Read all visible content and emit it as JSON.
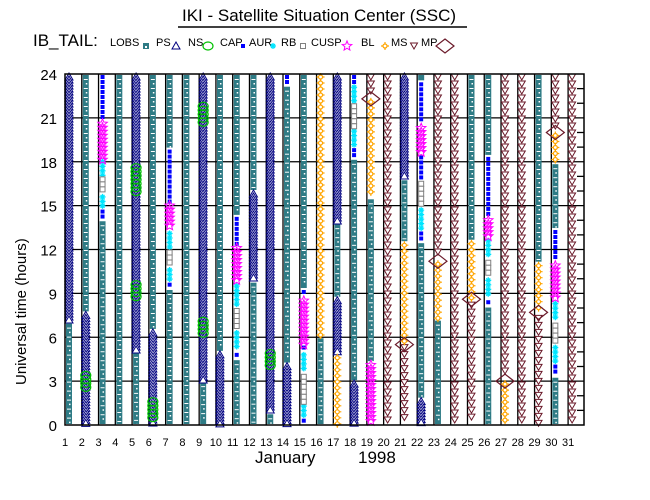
{
  "chart_data": {
    "type": "timeline",
    "title": "IKI - Satellite Situation Center (SSC)",
    "region_label": "IB_TAIL:",
    "xlabel_month": "January",
    "xlabel_year": "1998",
    "ylabel": "Universal time (hours)",
    "ylim": [
      0,
      24
    ],
    "yticks": [
      "0",
      "3",
      "6",
      "9",
      "12",
      "15",
      "18",
      "21",
      "24"
    ],
    "xticks": [
      "1",
      "2",
      "3",
      "4",
      "5",
      "6",
      "7",
      "8",
      "9",
      "10",
      "11",
      "12",
      "13",
      "14",
      "15",
      "16",
      "17",
      "18",
      "19",
      "20",
      "21",
      "22",
      "23",
      "24",
      "25",
      "26",
      "27",
      "28",
      "29",
      "30",
      "31"
    ],
    "legend": [
      {
        "key": "LOBS",
        "label": "LOBS",
        "color": "#2e7b85"
      },
      {
        "key": "PS",
        "label": "PS",
        "color": "#000080"
      },
      {
        "key": "NS",
        "label": "NS",
        "color": "#00c000"
      },
      {
        "key": "CAP",
        "label": "CAP",
        "color": "#0000ff"
      },
      {
        "key": "AUR",
        "label": "AUR",
        "color": "#00e5ff"
      },
      {
        "key": "RB",
        "label": "RB",
        "color": "#808080"
      },
      {
        "key": "CUSP",
        "label": "CUSP",
        "color": "#ff00ff"
      },
      {
        "key": "BL",
        "label": "BL",
        "color": "#ffa500"
      },
      {
        "key": "MS",
        "label": "MS",
        "color": "#6b1a2a"
      },
      {
        "key": "MP",
        "label": "MP",
        "color": "#6b1a2a"
      }
    ],
    "days": [
      {
        "day": 1,
        "segments": [
          [
            "LOBS",
            0,
            7
          ],
          [
            "PS",
            7,
            24
          ]
        ]
      },
      {
        "day": 2,
        "segments": [
          [
            "PS",
            0,
            7.7
          ],
          [
            "LOBS",
            7.7,
            24
          ],
          [
            "NS",
            2.4,
            3.6
          ]
        ]
      },
      {
        "day": 3,
        "segments": [
          [
            "LOBS",
            0,
            14
          ],
          [
            "CAP",
            14,
            14.8
          ],
          [
            "AUR",
            14.8,
            15.8
          ],
          [
            "RB",
            15.8,
            17
          ],
          [
            "AUR",
            17,
            18.2
          ],
          [
            "CUSP",
            17.9,
            20.8
          ],
          [
            "CAP",
            20.8,
            24
          ]
        ]
      },
      {
        "day": 4,
        "segments": [
          [
            "LOBS",
            0,
            24
          ]
        ]
      },
      {
        "day": 5,
        "segments": [
          [
            "LOBS",
            0,
            5
          ],
          [
            "PS",
            5,
            24
          ],
          [
            "NS",
            15.8,
            17.8
          ],
          [
            "NS",
            8.5,
            9.8
          ]
        ]
      },
      {
        "day": 6,
        "segments": [
          [
            "PS",
            0,
            6.5
          ],
          [
            "LOBS",
            6.5,
            24
          ],
          [
            "NS",
            0.2,
            1.8
          ]
        ]
      },
      {
        "day": 7,
        "segments": [
          [
            "LOBS",
            0,
            9.3
          ],
          [
            "CAP",
            9.3,
            9.8
          ],
          [
            "AUR",
            9.8,
            10.8
          ],
          [
            "RB",
            10.8,
            12
          ],
          [
            "AUR",
            12,
            13.3
          ],
          [
            "CUSP",
            13.3,
            15.2
          ],
          [
            "CAP",
            15.2,
            18.9
          ],
          [
            "LOBS",
            18.9,
            24
          ]
        ]
      },
      {
        "day": 8,
        "segments": [
          [
            "LOBS",
            0,
            24
          ]
        ]
      },
      {
        "day": 9,
        "segments": [
          [
            "LOBS",
            0,
            3
          ],
          [
            "PS",
            3,
            24
          ],
          [
            "NS",
            20.5,
            22
          ],
          [
            "NS",
            6.1,
            7.3
          ]
        ]
      },
      {
        "day": 10,
        "segments": [
          [
            "PS",
            0,
            5
          ],
          [
            "LOBS",
            5,
            24
          ]
        ]
      },
      {
        "day": 11,
        "segments": [
          [
            "LOBS",
            0,
            4.5
          ],
          [
            "CAP",
            4.5,
            5
          ],
          [
            "AUR",
            5,
            6.5
          ],
          [
            "RB",
            6.5,
            8
          ],
          [
            "AUR",
            8,
            9.7
          ],
          [
            "CUSP",
            9.7,
            12.3
          ],
          [
            "CAP",
            12.3,
            14.3
          ],
          [
            "LOBS",
            14.3,
            24
          ]
        ]
      },
      {
        "day": 12,
        "segments": [
          [
            "LOBS",
            0,
            9.8
          ],
          [
            "PS",
            9.8,
            16
          ],
          [
            "LOBS",
            16,
            24
          ]
        ]
      },
      {
        "day": 13,
        "segments": [
          [
            "LOBS",
            0,
            0.8
          ],
          [
            "PS",
            0.8,
            24
          ],
          [
            "NS",
            4,
            5.1
          ]
        ]
      },
      {
        "day": 14,
        "segments": [
          [
            "PS",
            0,
            4.2
          ],
          [
            "LOBS",
            4.2,
            23.2
          ],
          [
            "CAP",
            23.2,
            24
          ]
        ]
      },
      {
        "day": 15,
        "segments": [
          [
            "CAP",
            0,
            0.5
          ],
          [
            "AUR",
            0.5,
            1.5
          ],
          [
            "RB",
            1.5,
            3.5
          ],
          [
            "AUR",
            3.5,
            5
          ],
          [
            "CAP",
            5,
            5.5
          ],
          [
            "CUSP",
            5.3,
            8.7
          ],
          [
            "CAP",
            8.7,
            9.3
          ],
          [
            "LOBS",
            9.3,
            24
          ]
        ]
      },
      {
        "day": 16,
        "segments": [
          [
            "LOBS",
            0,
            6
          ],
          [
            "BL",
            6,
            24
          ]
        ]
      },
      {
        "day": 17,
        "segments": [
          [
            "BL",
            0,
            4.8
          ],
          [
            "PS",
            4.8,
            8.7
          ],
          [
            "LOBS",
            8.7,
            13.8
          ],
          [
            "PS",
            13.8,
            24
          ]
        ]
      },
      {
        "day": 18,
        "segments": [
          [
            "PS",
            0,
            3
          ],
          [
            "LOBS",
            3,
            18.2
          ],
          [
            "CAP",
            18.2,
            19
          ],
          [
            "AUR",
            19,
            20.3
          ],
          [
            "RB",
            20.3,
            22
          ],
          [
            "AUR",
            22,
            23.3
          ],
          [
            "CAP",
            23.3,
            24
          ]
        ]
      },
      {
        "day": 19,
        "segments": [
          [
            "CUSP",
            0,
            4.3
          ],
          [
            "LOBS",
            4.3,
            15.5
          ],
          [
            "BL",
            15.5,
            22.3
          ],
          [
            "MS",
            22.5,
            24
          ],
          [
            "MP",
            22.3,
            22.3
          ]
        ]
      },
      {
        "day": 20,
        "segments": [
          [
            "MS",
            0,
            24
          ]
        ]
      },
      {
        "day": 21,
        "segments": [
          [
            "MS",
            0,
            5.5
          ],
          [
            "MP",
            5.5,
            5.5
          ],
          [
            "BL",
            5.5,
            12.5
          ],
          [
            "LOBS",
            12.5,
            16.8
          ],
          [
            "PS",
            16.8,
            24
          ]
        ]
      },
      {
        "day": 22,
        "segments": [
          [
            "PS",
            0,
            1.8
          ],
          [
            "LOBS",
            1.8,
            12.5
          ],
          [
            "CAP",
            12.5,
            13.3
          ],
          [
            "AUR",
            13.3,
            14.9
          ],
          [
            "RB",
            14.9,
            16.7
          ],
          [
            "CAP",
            16.7,
            18.5
          ],
          [
            "CUSP",
            18.5,
            20.5
          ],
          [
            "CAP",
            20.5,
            23.5
          ],
          [
            "LOBS",
            23.5,
            24
          ]
        ]
      },
      {
        "day": 23,
        "segments": [
          [
            "LOBS",
            0,
            7.2
          ],
          [
            "BL",
            7.2,
            11.2
          ],
          [
            "MP",
            11.2,
            11.2
          ],
          [
            "MS",
            11.5,
            24
          ]
        ]
      },
      {
        "day": 24,
        "segments": [
          [
            "MS",
            0,
            24
          ]
        ]
      },
      {
        "day": 25,
        "segments": [
          [
            "MS",
            0,
            8.4
          ],
          [
            "MP",
            8.6,
            8.6
          ],
          [
            "BL",
            8.6,
            12.6
          ],
          [
            "LOBS",
            12.6,
            24
          ]
        ]
      },
      {
        "day": 26,
        "segments": [
          [
            "LOBS",
            0,
            8.1
          ],
          [
            "CAP",
            8.1,
            8.6
          ],
          [
            "AUR",
            8.6,
            10.1
          ],
          [
            "RB",
            10.1,
            11.3
          ],
          [
            "AUR",
            11.3,
            12.8
          ],
          [
            "CUSP",
            12.8,
            14.2
          ],
          [
            "CAP",
            14.2,
            18.4
          ],
          [
            "LOBS",
            18.4,
            24
          ]
        ]
      },
      {
        "day": 27,
        "segments": [
          [
            "BL",
            0,
            3
          ],
          [
            "MP",
            3,
            3
          ],
          [
            "MS",
            3.2,
            24
          ]
        ]
      },
      {
        "day": 28,
        "segments": [
          [
            "MS",
            0,
            24
          ]
        ]
      },
      {
        "day": 29,
        "segments": [
          [
            "MS",
            0,
            7.5
          ],
          [
            "MP",
            7.7,
            7.7
          ],
          [
            "BL",
            7.7,
            11.1
          ],
          [
            "LOBS",
            11.1,
            24
          ]
        ]
      },
      {
        "day": 30,
        "segments": [
          [
            "LOBS",
            0,
            3.3
          ],
          [
            "CAP",
            3.3,
            4.2
          ],
          [
            "AUR",
            4.2,
            5.5
          ],
          [
            "RB",
            5.5,
            7
          ],
          [
            "AUR",
            7,
            8.5
          ],
          [
            "CUSP",
            8.5,
            11.1
          ],
          [
            "CAP",
            11.1,
            13.4
          ],
          [
            "LOBS",
            13.4,
            17.9
          ],
          [
            "BL",
            17.9,
            20
          ],
          [
            "MP",
            20,
            20
          ],
          [
            "MS",
            20.3,
            24
          ]
        ]
      },
      {
        "day": 31,
        "segments": [
          [
            "MS",
            0,
            24
          ]
        ]
      }
    ]
  }
}
